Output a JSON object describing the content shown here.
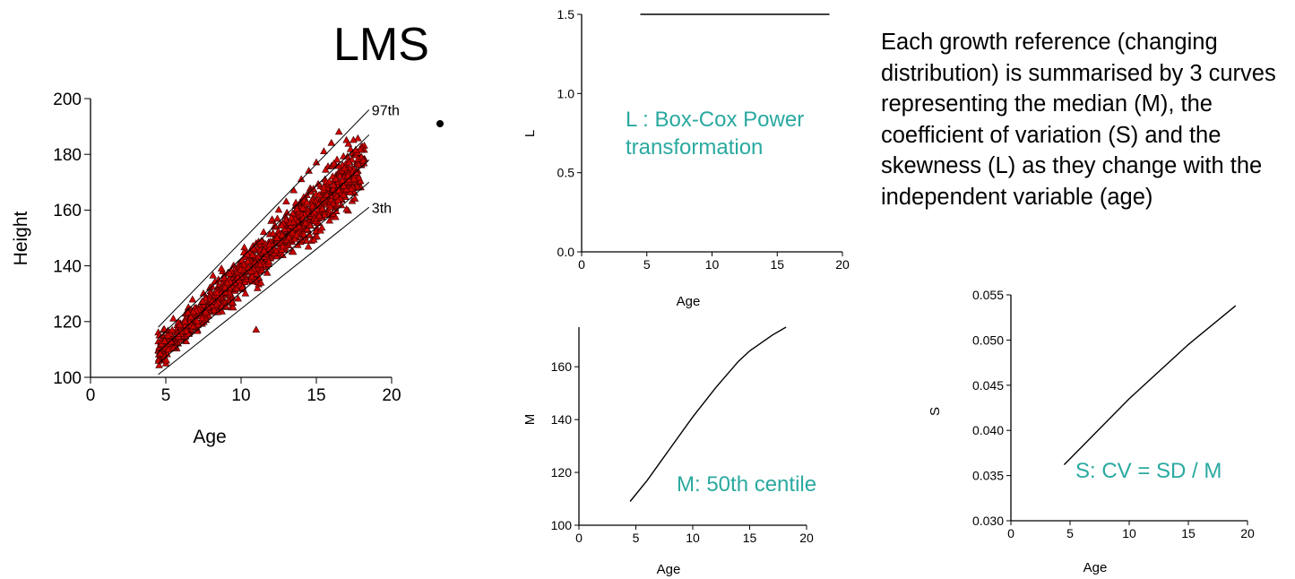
{
  "slide": {
    "title": "LMS",
    "description": "Each growth reference (changing distribution) is summarised by 3 curves representing the median (M), the coefficient of variation (S) and the skewness (L) as they change with the independent variable (age)"
  },
  "colors": {
    "annotation": "#2aa9a0",
    "points": "#cc0000",
    "point_edge": "#3a0000",
    "axis": "#000000"
  },
  "chart_data": [
    {
      "id": "height-scatter",
      "type": "scatter",
      "title": "",
      "xlabel": "Age",
      "ylabel": "Height",
      "xlim": [
        0,
        20
      ],
      "ylim": [
        100,
        200
      ],
      "xticks": [
        0,
        5,
        10,
        15,
        20
      ],
      "yticks": [
        100,
        120,
        140,
        160,
        180,
        200
      ],
      "marker": "triangle",
      "lines": [
        {
          "name": "97th",
          "x": [
            4.5,
            18.5
          ],
          "y": [
            118,
            196
          ]
        },
        {
          "name": "",
          "x": [
            4.5,
            18.5
          ],
          "y": [
            114,
            187
          ]
        },
        {
          "name": "",
          "x": [
            4.5,
            18.5
          ],
          "y": [
            109,
            178
          ]
        },
        {
          "name": "",
          "x": [
            4.5,
            18.5
          ],
          "y": [
            105,
            170
          ]
        },
        {
          "name": "3th",
          "x": [
            4.5,
            18.5
          ],
          "y": [
            101,
            161
          ]
        }
      ],
      "points_sample": [
        [
          4.5,
          116
        ],
        [
          5,
          112
        ],
        [
          5.5,
          121
        ],
        [
          6,
          118
        ],
        [
          6.5,
          125
        ],
        [
          7,
          122
        ],
        [
          7.5,
          130
        ],
        [
          8,
          126
        ],
        [
          8.5,
          135
        ],
        [
          9,
          131
        ],
        [
          9.5,
          140
        ],
        [
          10,
          137
        ],
        [
          10.5,
          144
        ],
        [
          11,
          148
        ],
        [
          11.5,
          152
        ],
        [
          12,
          156
        ],
        [
          12.5,
          160
        ],
        [
          13,
          163
        ],
        [
          13.5,
          167
        ],
        [
          14,
          171
        ],
        [
          14.5,
          174
        ],
        [
          15,
          177
        ],
        [
          15.5,
          181
        ],
        [
          16,
          184
        ],
        [
          16.5,
          188
        ],
        [
          17,
          185
        ],
        [
          17.5,
          180
        ],
        [
          18,
          176
        ],
        [
          11,
          117
        ]
      ]
    },
    {
      "id": "L-curve",
      "type": "line",
      "title": "",
      "xlabel": "Age",
      "ylabel": "L",
      "xlim": [
        0,
        20
      ],
      "ylim": [
        0,
        1.5
      ],
      "xticks": [
        0,
        5,
        10,
        15,
        20
      ],
      "yticks": [
        0.0,
        0.5,
        1.0,
        1.5
      ],
      "ytick_labels": [
        "0.0",
        "0.5",
        "1.0",
        "1.5"
      ],
      "annotation": "L : Box-Cox Power transformation",
      "annotation_lines": [
        "L : Box-Cox Power",
        "transformation"
      ],
      "x": [
        4.5,
        19
      ],
      "y": [
        1.5,
        1.5
      ]
    },
    {
      "id": "M-curve",
      "type": "line",
      "title": "",
      "xlabel": "Age",
      "ylabel": "M",
      "xlim": [
        0,
        20
      ],
      "ylim": [
        100,
        175
      ],
      "xticks": [
        0,
        5,
        10,
        15,
        20
      ],
      "yticks": [
        100,
        120,
        140,
        160
      ],
      "annotation": "M: 50th centile",
      "x": [
        4.5,
        6,
        8,
        10,
        12,
        14,
        15,
        16,
        17,
        18.2
      ],
      "y": [
        109,
        117,
        129,
        141,
        152,
        162,
        166,
        169,
        172,
        175
      ]
    },
    {
      "id": "S-curve",
      "type": "line",
      "title": "",
      "xlabel": "Age",
      "ylabel": "S",
      "xlim": [
        0,
        20
      ],
      "ylim": [
        0.03,
        0.055
      ],
      "xticks": [
        0,
        5,
        10,
        15,
        20
      ],
      "yticks": [
        0.03,
        0.035,
        0.04,
        0.045,
        0.05,
        0.055
      ],
      "ytick_labels": [
        "0.030",
        "0.035",
        "0.040",
        "0.045",
        "0.050",
        "0.055"
      ],
      "annotation": "S: CV = SD / M",
      "x": [
        4.5,
        10,
        15,
        19
      ],
      "y": [
        0.0362,
        0.0435,
        0.0495,
        0.0538
      ]
    }
  ]
}
